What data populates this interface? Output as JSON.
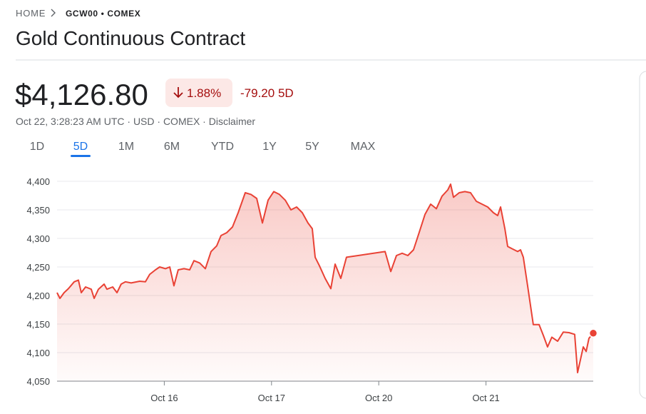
{
  "header": {
    "breadcrumb": [
      "HOME",
      "GCW00 • COMEX"
    ],
    "title": "Gold Continuous Contract"
  },
  "quote": {
    "price": "$4,126.80",
    "change_pct": "1.88%",
    "change": "-79.20",
    "period": "5D",
    "meta": "Oct 22, 3:28:23 AM UTC · USD · COMEX · Disclaimer"
  },
  "tabs": [
    "1D",
    "5D",
    "1M",
    "6M",
    "YTD",
    "1Y",
    "5Y",
    "MAX"
  ],
  "selected_tab": "5D",
  "chart_data": {
    "type": "line",
    "color": "#e94235",
    "x": [
      0,
      0.027,
      0.066,
      0.106,
      0.16,
      0.199,
      0.226,
      0.266,
      0.319,
      0.346,
      0.386,
      0.439,
      0.465,
      0.519,
      0.559,
      0.598,
      0.638,
      0.691,
      0.771,
      0.824,
      0.864,
      0.918,
      0.957,
      1.011,
      1.051,
      1.09,
      1.13,
      1.184,
      1.237,
      1.277,
      1.33,
      1.383,
      1.436,
      1.489,
      1.529,
      1.582,
      1.636,
      1.689,
      1.755,
      1.809,
      1.862,
      1.915,
      1.968,
      2.021,
      2.074,
      2.128,
      2.181,
      2.234,
      2.287,
      2.34,
      2.38,
      2.407,
      2.447,
      2.5,
      2.553,
      2.593,
      2.646,
      2.699,
      3.059,
      3.112,
      3.165,
      3.218,
      3.271,
      3.324,
      3.378,
      3.431,
      3.484,
      3.537,
      3.59,
      3.644,
      3.67,
      3.697,
      3.75,
      3.803,
      3.856,
      3.91,
      3.963,
      4.016,
      4.069,
      4.109,
      4.136,
      4.176,
      4.202,
      4.242,
      4.295,
      4.322,
      4.348,
      4.388,
      4.441,
      4.495,
      4.535,
      4.574,
      4.614,
      4.668,
      4.721,
      4.774,
      4.827,
      4.854,
      4.907,
      4.934,
      4.96,
      5.0
    ],
    "values": [
      4205,
      4195,
      4205,
      4212,
      4224,
      4227,
      4205,
      4215,
      4211,
      4195,
      4211,
      4220,
      4211,
      4215,
      4205,
      4220,
      4224,
      4222,
      4225,
      4224,
      4237,
      4245,
      4250,
      4247,
      4250,
      4217,
      4245,
      4247,
      4245,
      4261,
      4257,
      4247,
      4277,
      4287,
      4305,
      4310,
      4320,
      4345,
      4380,
      4377,
      4370,
      4327,
      4367,
      4382,
      4377,
      4367,
      4350,
      4355,
      4345,
      4327,
      4317,
      4267,
      4252,
      4230,
      4212,
      4255,
      4230,
      4267,
      4277,
      4242,
      4270,
      4274,
      4270,
      4280,
      4311,
      4342,
      4360,
      4352,
      4374,
      4385,
      4395,
      4372,
      4380,
      4382,
      4380,
      4365,
      4360,
      4355,
      4345,
      4340,
      4355,
      4317,
      4286,
      4282,
      4277,
      4280,
      4267,
      4217,
      4149,
      4149,
      4130,
      4110,
      4127,
      4120,
      4136,
      4135,
      4132,
      4065,
      4110,
      4102,
      4125,
      4134
    ],
    "xlim": [
      0,
      5
    ],
    "xticks": [
      {
        "value": 1,
        "label": "Oct 16"
      },
      {
        "value": 2,
        "label": "Oct 17"
      },
      {
        "value": 3,
        "label": "Oct 20"
      },
      {
        "value": 4,
        "label": "Oct 21"
      }
    ],
    "ylim": [
      4050,
      4400
    ],
    "yticks": [
      {
        "value": 4050,
        "label": "4,050"
      },
      {
        "value": 4100,
        "label": "4,100"
      },
      {
        "value": 4150,
        "label": "4,150"
      },
      {
        "value": 4200,
        "label": "4,200"
      },
      {
        "value": 4250,
        "label": "4,250"
      },
      {
        "value": 4300,
        "label": "4,300"
      },
      {
        "value": 4350,
        "label": "4,350"
      },
      {
        "value": 4400,
        "label": "4,400"
      }
    ],
    "grid": true
  }
}
